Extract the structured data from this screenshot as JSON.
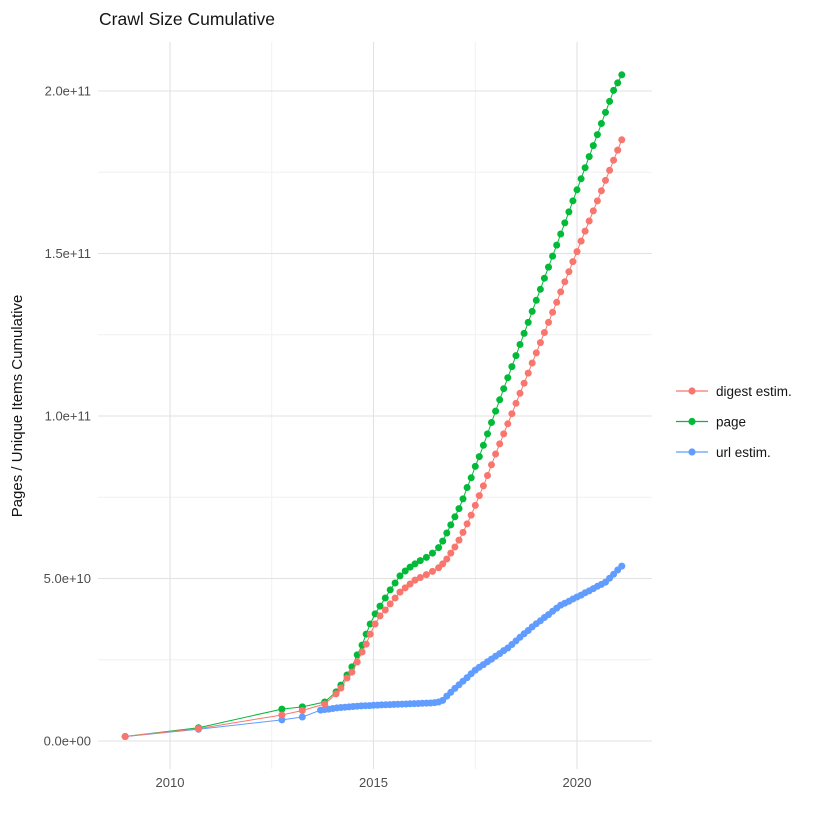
{
  "chart_data": {
    "type": "scatter",
    "title": "Crawl Size Cumulative",
    "xlabel": "",
    "ylabel": "Pages / Unique Items Cumulative",
    "values_unit": "billions (1e9)",
    "x_axis": {
      "domain": [
        2008.25,
        2021.75
      ],
      "ticks": [
        {
          "value": 2010,
          "label": "2010"
        },
        {
          "value": 2015,
          "label": "2015"
        },
        {
          "value": 2020,
          "label": "2020"
        }
      ],
      "minor_ticks": [
        2012.5,
        2017.5
      ],
      "grid": true
    },
    "y_axis": {
      "domain": [
        -9,
        215
      ],
      "ticks": [
        {
          "value": 0,
          "label": "0.0e+00"
        },
        {
          "value": 50,
          "label": "5.0e+10"
        },
        {
          "value": 100,
          "label": "1.0e+11"
        },
        {
          "value": 150,
          "label": "1.5e+11"
        },
        {
          "value": 200,
          "label": "2.0e+11"
        }
      ],
      "minor_ticks": [
        25,
        75,
        125,
        175
      ],
      "grid": true
    },
    "legend": {
      "position": "right",
      "entries": [
        {
          "label": "digest estim.",
          "color": "#F8766D"
        },
        {
          "label": "page",
          "color": "#00BA38"
        },
        {
          "label": "url estim.",
          "color": "#619CFF"
        }
      ]
    },
    "series": [
      {
        "name": "digest estim.",
        "color": "#F8766D",
        "z": 3,
        "points": [
          [
            2008.9,
            1.4
          ],
          [
            2010.7,
            3.8
          ],
          [
            2012.75,
            8.0
          ],
          [
            2013.25,
            9.4
          ],
          [
            2013.8,
            11.4
          ],
          [
            2014.08,
            14.5
          ],
          [
            2014.2,
            16.3
          ],
          [
            2014.35,
            19.4
          ],
          [
            2014.47,
            21.2
          ],
          [
            2014.6,
            24.3
          ],
          [
            2014.72,
            27.4
          ],
          [
            2014.82,
            29.8
          ],
          [
            2014.92,
            32.9
          ],
          [
            2015.04,
            36.0
          ],
          [
            2015.16,
            38.5
          ],
          [
            2015.29,
            40.3
          ],
          [
            2015.41,
            42.2
          ],
          [
            2015.53,
            44.0
          ],
          [
            2015.65,
            45.8
          ],
          [
            2015.78,
            47.1
          ],
          [
            2015.9,
            48.3
          ],
          [
            2016.02,
            49.5
          ],
          [
            2016.15,
            50.3
          ],
          [
            2016.3,
            51.2
          ],
          [
            2016.45,
            52.2
          ],
          [
            2016.6,
            53.3
          ],
          [
            2016.7,
            54.5
          ],
          [
            2016.8,
            56.0
          ],
          [
            2016.9,
            57.8
          ],
          [
            2017.0,
            59.7
          ],
          [
            2017.1,
            61.8
          ],
          [
            2017.2,
            64.2
          ],
          [
            2017.3,
            66.8
          ],
          [
            2017.4,
            69.5
          ],
          [
            2017.5,
            72.5
          ],
          [
            2017.6,
            75.5
          ],
          [
            2017.7,
            78.5
          ],
          [
            2017.8,
            81.7
          ],
          [
            2017.9,
            85.0
          ],
          [
            2018.0,
            88.3
          ],
          [
            2018.1,
            91.4
          ],
          [
            2018.2,
            94.5
          ],
          [
            2018.3,
            97.6
          ],
          [
            2018.4,
            100.7
          ],
          [
            2018.5,
            103.9
          ],
          [
            2018.6,
            107.0
          ],
          [
            2018.7,
            110.1
          ],
          [
            2018.8,
            113.2
          ],
          [
            2018.9,
            116.3
          ],
          [
            2019.0,
            119.4
          ],
          [
            2019.1,
            122.6
          ],
          [
            2019.2,
            125.7
          ],
          [
            2019.3,
            128.8
          ],
          [
            2019.4,
            131.9
          ],
          [
            2019.5,
            135.0
          ],
          [
            2019.6,
            138.2
          ],
          [
            2019.7,
            141.3
          ],
          [
            2019.8,
            144.4
          ],
          [
            2019.9,
            147.5
          ],
          [
            2020.0,
            150.6
          ],
          [
            2020.1,
            153.8
          ],
          [
            2020.2,
            156.9
          ],
          [
            2020.3,
            160.0
          ],
          [
            2020.4,
            163.1
          ],
          [
            2020.5,
            166.2
          ],
          [
            2020.6,
            169.3
          ],
          [
            2020.7,
            172.5
          ],
          [
            2020.8,
            175.6
          ],
          [
            2020.9,
            178.7
          ],
          [
            2021.0,
            181.8
          ],
          [
            2021.1,
            185.0
          ]
        ]
      },
      {
        "name": "page",
        "color": "#00BA38",
        "z": 1,
        "points": [
          [
            2008.9,
            1.4
          ],
          [
            2010.7,
            4.1
          ],
          [
            2012.75,
            9.8
          ],
          [
            2013.25,
            10.5
          ],
          [
            2013.8,
            12.0
          ],
          [
            2014.08,
            15.1
          ],
          [
            2014.2,
            17.2
          ],
          [
            2014.35,
            20.3
          ],
          [
            2014.47,
            22.8
          ],
          [
            2014.6,
            26.5
          ],
          [
            2014.72,
            29.5
          ],
          [
            2014.82,
            32.9
          ],
          [
            2014.92,
            36.0
          ],
          [
            2015.04,
            39.1
          ],
          [
            2015.16,
            41.5
          ],
          [
            2015.29,
            44.0
          ],
          [
            2015.41,
            46.5
          ],
          [
            2015.53,
            48.6
          ],
          [
            2015.65,
            50.8
          ],
          [
            2015.78,
            52.3
          ],
          [
            2015.9,
            53.5
          ],
          [
            2016.02,
            54.5
          ],
          [
            2016.15,
            55.5
          ],
          [
            2016.3,
            56.5
          ],
          [
            2016.45,
            57.8
          ],
          [
            2016.6,
            59.5
          ],
          [
            2016.7,
            61.5
          ],
          [
            2016.8,
            64.0
          ],
          [
            2016.9,
            66.5
          ],
          [
            2017.0,
            69.0
          ],
          [
            2017.1,
            71.5
          ],
          [
            2017.2,
            74.5
          ],
          [
            2017.3,
            78.0
          ],
          [
            2017.4,
            81.0
          ],
          [
            2017.5,
            84.5
          ],
          [
            2017.6,
            87.5
          ],
          [
            2017.7,
            91.0
          ],
          [
            2017.8,
            94.5
          ],
          [
            2017.9,
            98.0
          ],
          [
            2018.0,
            101.5
          ],
          [
            2018.1,
            105.0
          ],
          [
            2018.2,
            108.4
          ],
          [
            2018.3,
            111.8
          ],
          [
            2018.4,
            115.2
          ],
          [
            2018.5,
            118.6
          ],
          [
            2018.6,
            122.0
          ],
          [
            2018.7,
            125.4
          ],
          [
            2018.8,
            128.8
          ],
          [
            2018.9,
            132.2
          ],
          [
            2019.0,
            135.6
          ],
          [
            2019.1,
            139.0
          ],
          [
            2019.2,
            142.4
          ],
          [
            2019.3,
            145.8
          ],
          [
            2019.4,
            149.2
          ],
          [
            2019.5,
            152.6
          ],
          [
            2019.6,
            156.0
          ],
          [
            2019.7,
            159.4
          ],
          [
            2019.8,
            162.8
          ],
          [
            2019.9,
            166.2
          ],
          [
            2020.0,
            169.6
          ],
          [
            2020.1,
            173.0
          ],
          [
            2020.2,
            176.4
          ],
          [
            2020.3,
            179.8
          ],
          [
            2020.4,
            183.2
          ],
          [
            2020.5,
            186.6
          ],
          [
            2020.6,
            190.0
          ],
          [
            2020.7,
            193.4
          ],
          [
            2020.8,
            196.8
          ],
          [
            2020.9,
            200.2
          ],
          [
            2021.0,
            202.5
          ],
          [
            2021.1,
            205.0
          ]
        ]
      },
      {
        "name": "url estim.",
        "color": "#619CFF",
        "z": 2,
        "points": [
          [
            2008.9,
            1.4
          ],
          [
            2010.7,
            3.6
          ],
          [
            2012.75,
            6.5
          ],
          [
            2013.25,
            7.4
          ],
          [
            2013.7,
            9.5
          ],
          [
            2013.8,
            9.7
          ],
          [
            2013.9,
            9.8
          ],
          [
            2014.0,
            10.0
          ],
          [
            2014.1,
            10.2
          ],
          [
            2014.2,
            10.3
          ],
          [
            2014.3,
            10.4
          ],
          [
            2014.4,
            10.5
          ],
          [
            2014.5,
            10.6
          ],
          [
            2014.6,
            10.7
          ],
          [
            2014.7,
            10.8
          ],
          [
            2014.8,
            10.85
          ],
          [
            2014.9,
            10.9
          ],
          [
            2015.0,
            11.0
          ],
          [
            2015.1,
            11.05
          ],
          [
            2015.2,
            11.1
          ],
          [
            2015.3,
            11.15
          ],
          [
            2015.4,
            11.2
          ],
          [
            2015.5,
            11.25
          ],
          [
            2015.6,
            11.3
          ],
          [
            2015.7,
            11.35
          ],
          [
            2015.8,
            11.4
          ],
          [
            2015.9,
            11.45
          ],
          [
            2016.0,
            11.5
          ],
          [
            2016.1,
            11.55
          ],
          [
            2016.2,
            11.6
          ],
          [
            2016.3,
            11.65
          ],
          [
            2016.4,
            11.7
          ],
          [
            2016.5,
            11.8
          ],
          [
            2016.6,
            12.0
          ],
          [
            2016.7,
            12.5
          ],
          [
            2016.8,
            13.8
          ],
          [
            2016.9,
            15.0
          ],
          [
            2017.0,
            16.2
          ],
          [
            2017.1,
            17.3
          ],
          [
            2017.2,
            18.4
          ],
          [
            2017.3,
            19.5
          ],
          [
            2017.4,
            20.7
          ],
          [
            2017.5,
            21.8
          ],
          [
            2017.6,
            22.7
          ],
          [
            2017.7,
            23.5
          ],
          [
            2017.8,
            24.4
          ],
          [
            2017.9,
            25.2
          ],
          [
            2018.0,
            26.1
          ],
          [
            2018.1,
            26.9
          ],
          [
            2018.2,
            27.8
          ],
          [
            2018.3,
            28.6
          ],
          [
            2018.4,
            29.7
          ],
          [
            2018.5,
            30.8
          ],
          [
            2018.6,
            31.9
          ],
          [
            2018.7,
            33.0
          ],
          [
            2018.8,
            34.0
          ],
          [
            2018.9,
            35.1
          ],
          [
            2019.0,
            36.1
          ],
          [
            2019.1,
            37.0
          ],
          [
            2019.2,
            38.0
          ],
          [
            2019.3,
            38.9
          ],
          [
            2019.4,
            39.9
          ],
          [
            2019.5,
            40.9
          ],
          [
            2019.6,
            41.8
          ],
          [
            2019.7,
            42.4
          ],
          [
            2019.8,
            43.0
          ],
          [
            2019.9,
            43.7
          ],
          [
            2020.0,
            44.3
          ],
          [
            2020.1,
            44.9
          ],
          [
            2020.2,
            45.6
          ],
          [
            2020.3,
            46.2
          ],
          [
            2020.4,
            46.9
          ],
          [
            2020.5,
            47.6
          ],
          [
            2020.6,
            48.2
          ],
          [
            2020.7,
            48.9
          ],
          [
            2020.8,
            50.1
          ],
          [
            2020.9,
            51.3
          ],
          [
            2021.0,
            52.6
          ],
          [
            2021.1,
            53.8
          ]
        ]
      }
    ]
  }
}
